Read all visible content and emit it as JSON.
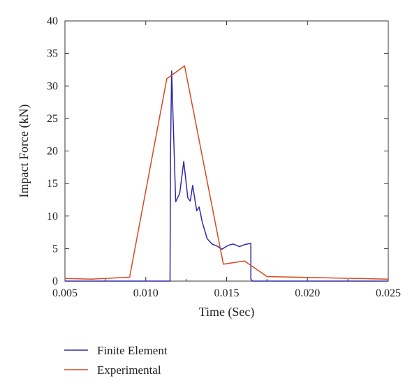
{
  "chart_data": {
    "type": "line",
    "xlabel": "Time (Sec)",
    "ylabel": "Impact Force (kN)",
    "xlim": [
      0.005,
      0.025
    ],
    "ylim": [
      0,
      40
    ],
    "x_ticks": [
      "0.005",
      "0.010",
      "0.015",
      "0.020",
      "0.025"
    ],
    "y_ticks": [
      "0",
      "5",
      "10",
      "15",
      "20",
      "25",
      "30",
      "35",
      "40"
    ],
    "x_tick_values": [
      0.005,
      0.01,
      0.015,
      0.02,
      0.025
    ],
    "y_tick_values": [
      0,
      5,
      10,
      15,
      20,
      25,
      30,
      35,
      40
    ],
    "grid": false,
    "legend_position": "bottom-left below plot",
    "series": [
      {
        "name": "Finite Element",
        "color": "#2e2aa8",
        "points": [
          [
            0.005,
            0
          ],
          [
            0.0115,
            0
          ],
          [
            0.0115,
            0.3
          ],
          [
            0.01153,
            20
          ],
          [
            0.0116,
            32.3
          ],
          [
            0.01185,
            12.2
          ],
          [
            0.0121,
            13.5
          ],
          [
            0.01235,
            18.4
          ],
          [
            0.0126,
            12.8
          ],
          [
            0.01275,
            12.3
          ],
          [
            0.0129,
            14.7
          ],
          [
            0.01315,
            10.8
          ],
          [
            0.0133,
            11.4
          ],
          [
            0.0135,
            9.0
          ],
          [
            0.0138,
            6.5
          ],
          [
            0.0141,
            5.7
          ],
          [
            0.0144,
            5.4
          ],
          [
            0.0147,
            4.9
          ],
          [
            0.0151,
            5.5
          ],
          [
            0.0154,
            5.7
          ],
          [
            0.0158,
            5.3
          ],
          [
            0.0161,
            5.6
          ],
          [
            0.0165,
            5.8
          ],
          [
            0.0165,
            0.3
          ],
          [
            0.0166,
            0
          ],
          [
            0.025,
            0
          ]
        ]
      },
      {
        "name": "Experimental",
        "color": "#d8481f",
        "points": [
          [
            0.005,
            0.4
          ],
          [
            0.0066,
            0.3
          ],
          [
            0.009,
            0.6
          ],
          [
            0.0113,
            31.1
          ],
          [
            0.0124,
            33.1
          ],
          [
            0.0148,
            2.6
          ],
          [
            0.0161,
            3.1
          ],
          [
            0.0175,
            0.7
          ],
          [
            0.025,
            0.3
          ]
        ]
      }
    ]
  }
}
